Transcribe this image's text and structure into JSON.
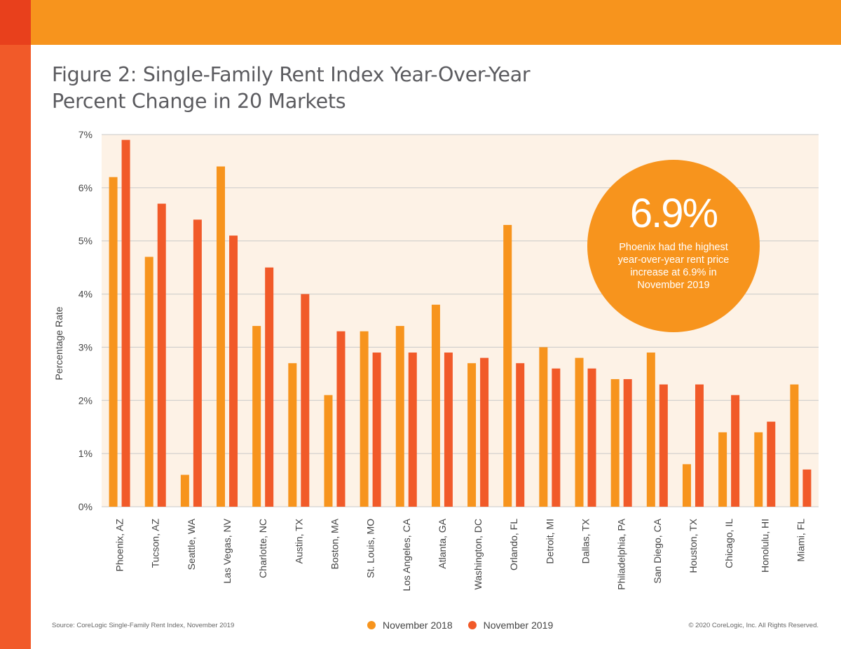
{
  "title_line1": "Figure 2: Single-Family Rent Index Year-Over-Year",
  "title_line2": "Percent Change in 20 Markets",
  "source": "Source: CoreLogic Single-Family Rent Index, November 2019",
  "copyright": "© 2020 CoreLogic, Inc. All Rights Reserved.",
  "callout": {
    "value": "6.9%",
    "text": "Phoenix had the highest year-over-year rent price increase at 6.9% in November 2019"
  },
  "colors": {
    "series_2018": "#f7941d",
    "series_2019": "#f15a29",
    "plot_bg": "#fdf2e6",
    "grid": "#c9c9c9"
  },
  "chart_data": {
    "type": "bar",
    "title": "Figure 2: Single-Family Rent Index Year-Over-Year Percent Change in 20 Markets",
    "xlabel": "",
    "ylabel": "Percentage Rate",
    "ylim": [
      0,
      7
    ],
    "yticks": [
      0,
      1,
      2,
      3,
      4,
      5,
      6,
      7
    ],
    "ytick_labels": [
      "0%",
      "1%",
      "2%",
      "3%",
      "4%",
      "5%",
      "6%",
      "7%"
    ],
    "grid": true,
    "legend_position": "bottom-center",
    "categories": [
      "Phoenix, AZ",
      "Tucson, AZ",
      "Seattle, WA",
      "Las Vegas, NV",
      "Charlotte, NC",
      "Austin, TX",
      "Boston, MA",
      "St. Louis, MO",
      "Los Angeles, CA",
      "Atlanta, GA",
      "Washington, DC",
      "Orlando, FL",
      "Detroit, MI",
      "Dallas, TX",
      "Philadelphia, PA",
      "San Diego, CA",
      "Houston, TX",
      "Chicago, IL",
      "Honolulu, HI",
      "Miami, FL"
    ],
    "series": [
      {
        "name": "November 2018",
        "values": [
          6.2,
          4.7,
          0.6,
          6.4,
          3.4,
          2.7,
          2.1,
          3.3,
          3.4,
          3.8,
          2.7,
          5.3,
          3.0,
          2.8,
          2.4,
          2.9,
          0.8,
          1.4,
          1.4,
          2.3
        ]
      },
      {
        "name": "November 2019",
        "values": [
          6.9,
          5.7,
          5.4,
          5.1,
          4.5,
          4.0,
          3.3,
          2.9,
          2.9,
          2.9,
          2.8,
          2.7,
          2.6,
          2.6,
          2.4,
          2.3,
          2.3,
          2.1,
          1.6,
          0.7
        ]
      }
    ]
  }
}
